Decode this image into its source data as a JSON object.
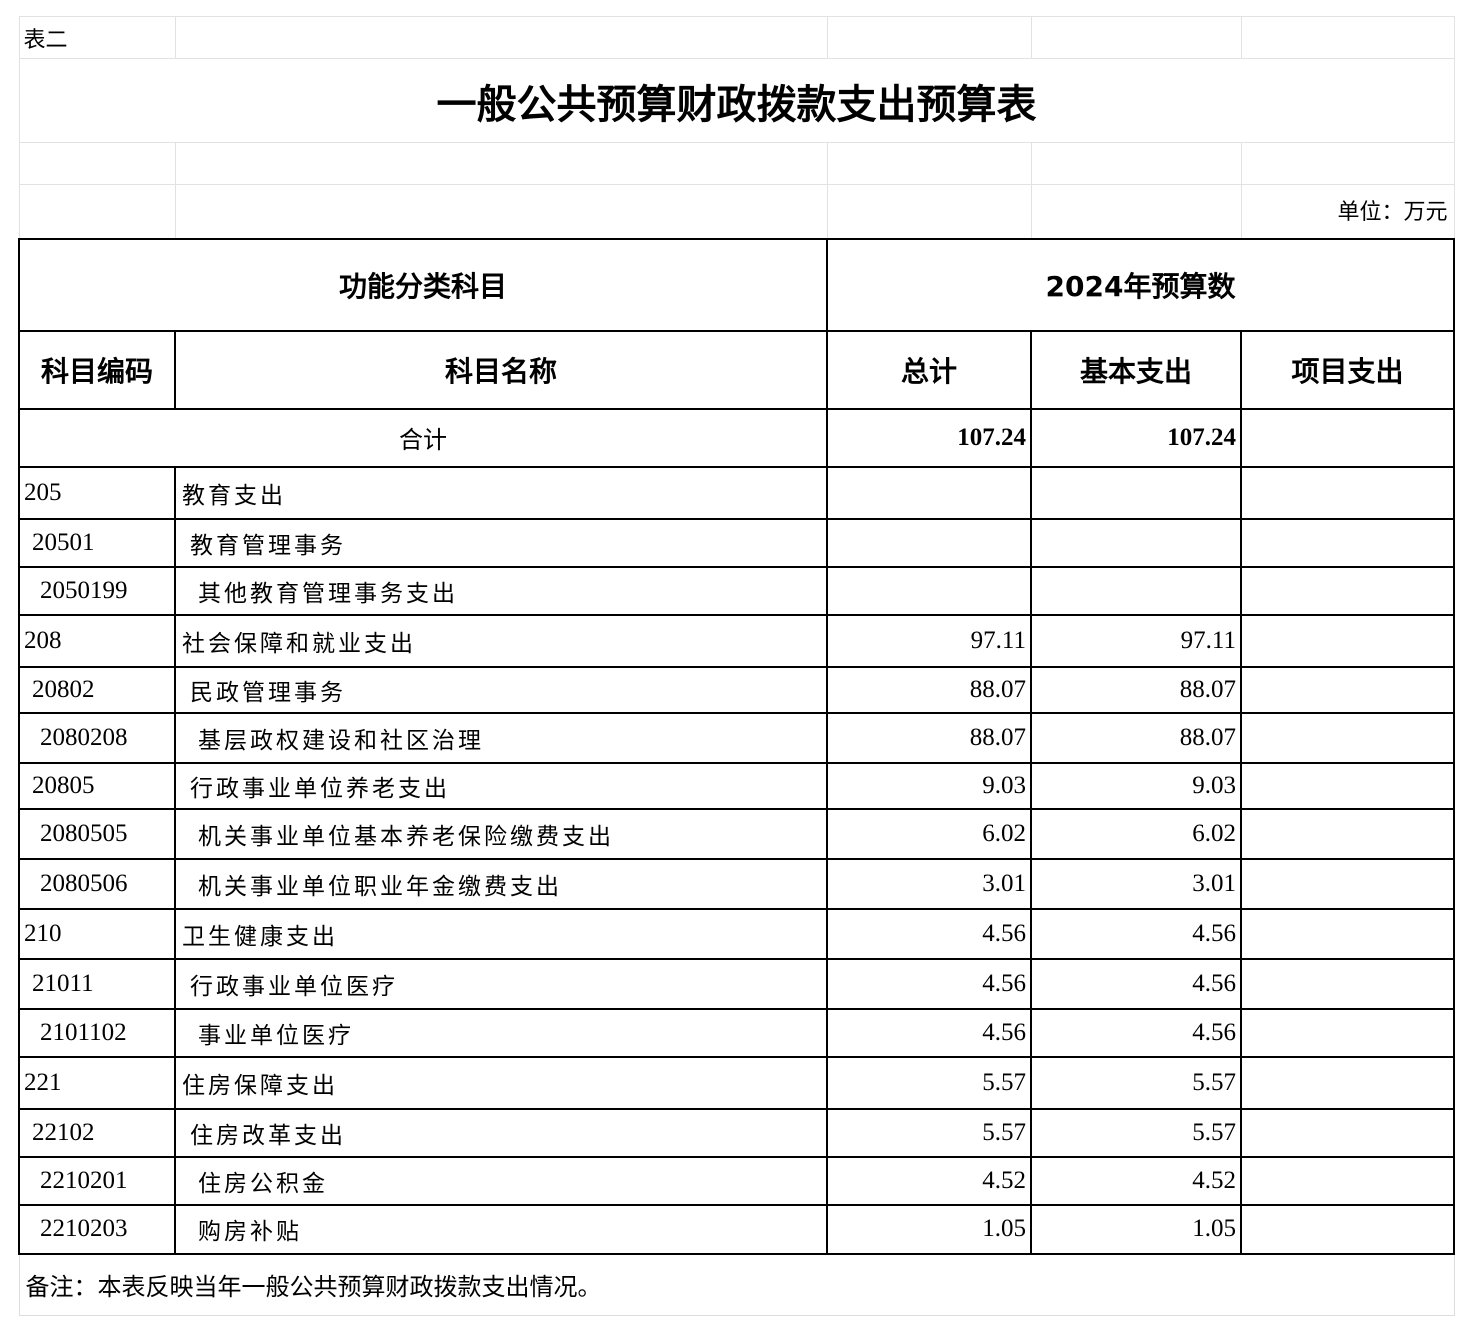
{
  "sheet_label": "表二",
  "title": "一般公共预算财政拨款支出预算表",
  "unit": "单位：万元",
  "header": {
    "group_left": "功能分类科目",
    "group_right": "2024年预算数",
    "code": "科目编码",
    "name": "科目名称",
    "total": "总计",
    "basic": "基本支出",
    "project": "项目支出"
  },
  "summary": {
    "label": "合计",
    "total": "107.24",
    "basic": "107.24",
    "project": ""
  },
  "rows": [
    {
      "level": 1,
      "code": "205",
      "name": "教育支出",
      "total": "",
      "basic": "",
      "project": ""
    },
    {
      "level": 2,
      "code": "20501",
      "name": "教育管理事务",
      "total": "",
      "basic": "",
      "project": ""
    },
    {
      "level": 3,
      "code": "2050199",
      "name": "其他教育管理事务支出",
      "total": "",
      "basic": "",
      "project": ""
    },
    {
      "level": 1,
      "code": "208",
      "name": "社会保障和就业支出",
      "total": "97.11",
      "basic": "97.11",
      "project": ""
    },
    {
      "level": 2,
      "code": "20802",
      "name": "民政管理事务",
      "total": "88.07",
      "basic": "88.07",
      "project": ""
    },
    {
      "level": 3,
      "code": "2080208",
      "name": "基层政权建设和社区治理",
      "total": "88.07",
      "basic": "88.07",
      "project": ""
    },
    {
      "level": 2,
      "code": "20805",
      "name": "行政事业单位养老支出",
      "total": "9.03",
      "basic": "9.03",
      "project": ""
    },
    {
      "level": 3,
      "code": "2080505",
      "name": "机关事业单位基本养老保险缴费支出",
      "total": "6.02",
      "basic": "6.02",
      "project": ""
    },
    {
      "level": 3,
      "code": "2080506",
      "name": "机关事业单位职业年金缴费支出",
      "total": "3.01",
      "basic": "3.01",
      "project": ""
    },
    {
      "level": 1,
      "code": "210",
      "name": "卫生健康支出",
      "total": "4.56",
      "basic": "4.56",
      "project": ""
    },
    {
      "level": 2,
      "code": "21011",
      "name": "行政事业单位医疗",
      "total": "4.56",
      "basic": "4.56",
      "project": ""
    },
    {
      "level": 3,
      "code": "2101102",
      "name": "事业单位医疗",
      "total": "4.56",
      "basic": "4.56",
      "project": ""
    },
    {
      "level": 1,
      "code": "221",
      "name": "住房保障支出",
      "total": "5.57",
      "basic": "5.57",
      "project": ""
    },
    {
      "level": 2,
      "code": "22102",
      "name": "住房改革支出",
      "total": "5.57",
      "basic": "5.57",
      "project": ""
    },
    {
      "level": 3,
      "code": "2210201",
      "name": "住房公积金",
      "total": "4.52",
      "basic": "4.52",
      "project": ""
    },
    {
      "level": 3,
      "code": "2210203",
      "name": "购房补贴",
      "total": "1.05",
      "basic": "1.05",
      "project": ""
    }
  ],
  "note": "备注：本表反映当年一般公共预算财政拨款支出情况。"
}
